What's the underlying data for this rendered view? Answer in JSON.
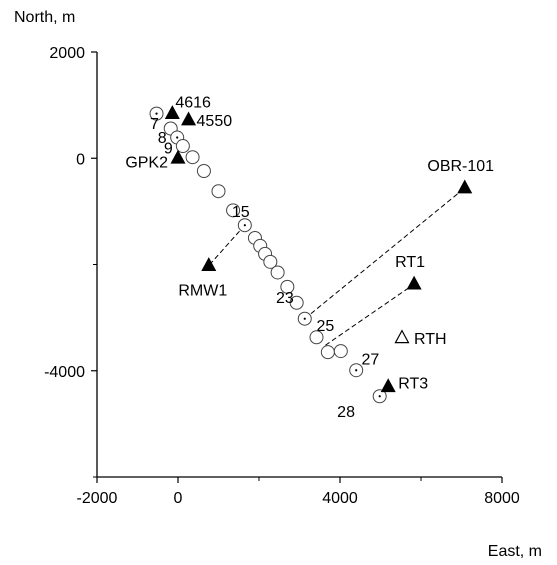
{
  "chart_data": {
    "type": "scatter",
    "xlabel": "East, m",
    "ylabel": "North, m",
    "xlim": [
      -2000,
      8000
    ],
    "ylim": [
      -6000,
      2000
    ],
    "xticks": [
      {
        "value": -2000,
        "label": "-2000"
      },
      {
        "value": 0,
        "label": "0"
      },
      {
        "value": 4000,
        "label": "4000"
      },
      {
        "value": 8000,
        "label": "8000"
      }
    ],
    "yticks": [
      {
        "value": 2000,
        "label": "2000"
      },
      {
        "value": 0,
        "label": "0"
      },
      {
        "value": -4000,
        "label": "-4000"
      }
    ],
    "minor_ticks": {
      "x": [
        2000,
        6000
      ],
      "y": [
        -2000,
        -6000
      ]
    },
    "circles": [
      {
        "x": -530,
        "y": 840,
        "dotted": true
      },
      {
        "x": -180,
        "y": 560,
        "dotted": false
      },
      {
        "x": -20,
        "y": 390,
        "dotted": true
      },
      {
        "x": 120,
        "y": 230,
        "dotted": false
      },
      {
        "x": 360,
        "y": 20,
        "dotted": false
      },
      {
        "x": 640,
        "y": -240,
        "dotted": false
      },
      {
        "x": 1000,
        "y": -620,
        "dotted": false
      },
      {
        "x": 1360,
        "y": -980,
        "dotted": false
      },
      {
        "x": 1650,
        "y": -1260,
        "dotted": true
      },
      {
        "x": 1900,
        "y": -1500,
        "dotted": false
      },
      {
        "x": 2030,
        "y": -1650,
        "dotted": false
      },
      {
        "x": 2150,
        "y": -1800,
        "dotted": false
      },
      {
        "x": 2280,
        "y": -1950,
        "dotted": false
      },
      {
        "x": 2460,
        "y": -2150,
        "dotted": false
      },
      {
        "x": 2700,
        "y": -2420,
        "dotted": false
      },
      {
        "x": 2930,
        "y": -2720,
        "dotted": false
      },
      {
        "x": 3130,
        "y": -3020,
        "dotted": true
      },
      {
        "x": 3420,
        "y": -3370,
        "dotted": false
      },
      {
        "x": 3700,
        "y": -3650,
        "dotted": false
      },
      {
        "x": 4020,
        "y": -3630,
        "dotted": false
      },
      {
        "x": 4400,
        "y": -3990,
        "dotted": true
      },
      {
        "x": 4980,
        "y": -4480,
        "dotted": true
      }
    ],
    "well_labels": [
      {
        "text": "7",
        "x": -580,
        "y": 660
      },
      {
        "text": "8",
        "x": -390,
        "y": 400
      },
      {
        "text": "9",
        "x": -240,
        "y": 200
      },
      {
        "text": "15",
        "x": 1550,
        "y": -990
      },
      {
        "text": "23",
        "x": 2640,
        "y": -2610
      },
      {
        "text": "25",
        "x": 3640,
        "y": -3140
      },
      {
        "text": "27",
        "x": 4750,
        "y": -3770
      },
      {
        "text": "28",
        "x": 4150,
        "y": -4760
      }
    ],
    "stations": [
      {
        "name": "4616",
        "x": -140,
        "y": 840,
        "marker": "filled"
      },
      {
        "name": "4550",
        "x": 260,
        "y": 720,
        "marker": "filled"
      },
      {
        "name": "GPK2",
        "x": 0,
        "y": 0,
        "marker": "filled"
      },
      {
        "name": "OBR-101",
        "x": 7080,
        "y": -560,
        "marker": "filled"
      },
      {
        "name": "RMW1",
        "x": 760,
        "y": -2020,
        "marker": "filled"
      },
      {
        "name": "RT1",
        "x": 5830,
        "y": -2370,
        "marker": "filled"
      },
      {
        "name": "RTH",
        "x": 5530,
        "y": -3380,
        "marker": "open"
      },
      {
        "name": "RT3",
        "x": 5190,
        "y": -4300,
        "marker": "filled"
      }
    ],
    "dashed_lines": [
      {
        "from": [
          3130,
          -3020
        ],
        "to": [
          7080,
          -560
        ]
      },
      {
        "from": [
          3640,
          -3520
        ],
        "to": [
          5830,
          -2370
        ]
      },
      {
        "from": [
          1650,
          -1260
        ],
        "to": [
          760,
          -2020
        ]
      }
    ],
    "grid": false,
    "legend": "none"
  }
}
